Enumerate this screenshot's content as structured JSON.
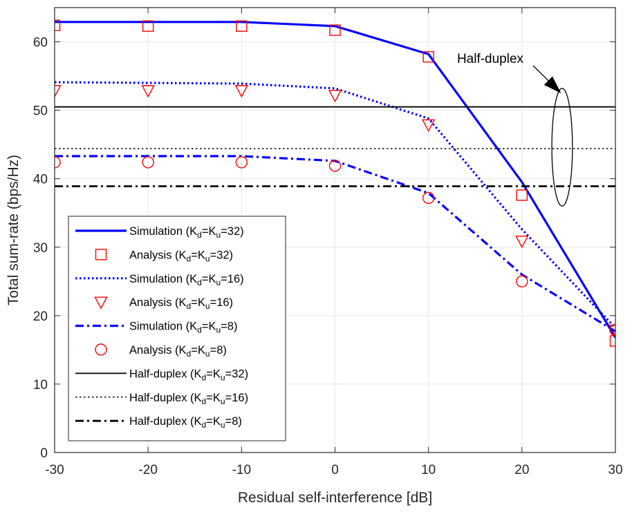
{
  "chart_data": {
    "type": "line",
    "title": "",
    "xlabel": "Residual self-interference [dB]",
    "ylabel": "Total sum-rate (bps/Hz)",
    "xlim": [
      -30,
      30
    ],
    "ylim": [
      0,
      65
    ],
    "xticks": [
      -30,
      -20,
      -10,
      0,
      10,
      20,
      30
    ],
    "xtick_labels": [
      "-30",
      "-20",
      "-10",
      "0",
      "10",
      "20",
      "30"
    ],
    "yticks": [
      0,
      10,
      20,
      30,
      40,
      50,
      60
    ],
    "ytick_labels": [
      "0",
      "10",
      "20",
      "30",
      "40",
      "50",
      "60"
    ],
    "grid": true,
    "legend_position": "bottom-left",
    "x": [
      -30,
      -20,
      -10,
      0,
      10,
      20,
      30
    ],
    "series": [
      {
        "name": "Simulation (Kd=Ku=32)",
        "legend_text": "Simulation (K",
        "k_d": "d",
        "mid": "=K",
        "k_u": "u",
        "tail": "=32)",
        "kind": "line",
        "dash": "solid",
        "width": 3.2,
        "color": "#0000ff",
        "values": [
          62.9,
          62.9,
          62.9,
          62.3,
          58.2,
          39.5,
          16.8
        ]
      },
      {
        "name": "Analysis (Kd=Ku=32)",
        "legend_text": "Analysis (K",
        "k_d": "d",
        "mid": "=K",
        "k_u": "u",
        "tail": "=32)",
        "kind": "marker",
        "marker": "square",
        "color": "#ff0000",
        "values": [
          62.4,
          62.3,
          62.3,
          61.7,
          57.8,
          37.6,
          16.3
        ]
      },
      {
        "name": "Simulation (Kd=Ku=16)",
        "legend_text": "Simulation (K",
        "k_d": "d",
        "mid": "=K",
        "k_u": "u",
        "tail": "=16)",
        "kind": "line",
        "dash": "dotted",
        "width": 3.2,
        "color": "#0000ff",
        "values": [
          54.1,
          54.0,
          53.9,
          53.2,
          48.8,
          32.6,
          18.2
        ]
      },
      {
        "name": "Analysis (Kd=Ku=16)",
        "legend_text": "Analysis (K",
        "k_d": "d",
        "mid": "=K",
        "k_u": "u",
        "tail": "=16)",
        "kind": "marker",
        "marker": "triangle-down",
        "color": "#ff0000",
        "values": [
          52.9,
          52.9,
          52.9,
          52.2,
          47.9,
          30.9,
          17.9
        ]
      },
      {
        "name": "Simulation (Kd=Ku=8)",
        "legend_text": "Simulation (K",
        "k_d": "d",
        "mid": "=K",
        "k_u": "u",
        "tail": "=8)",
        "kind": "line",
        "dash": "dashdot",
        "width": 3.2,
        "color": "#0000ff",
        "values": [
          43.3,
          43.3,
          43.3,
          42.6,
          37.9,
          26.0,
          17.7
        ]
      },
      {
        "name": "Analysis (Kd=Ku=8)",
        "legend_text": "Analysis (K",
        "k_d": "d",
        "mid": "=K",
        "k_u": "u",
        "tail": "=8)",
        "kind": "marker",
        "marker": "circle",
        "color": "#ff0000",
        "values": [
          42.4,
          42.4,
          42.4,
          41.9,
          37.2,
          25.0,
          17.9
        ]
      },
      {
        "name": "Half-duplex (Kd=Ku=32)",
        "legend_text": "Half-duplex (K",
        "k_d": "d",
        "mid": "=K",
        "k_u": "u",
        "tail": "=32)",
        "kind": "line",
        "dash": "solid",
        "width": 1.8,
        "color": "#000000",
        "values": [
          50.5,
          50.5,
          50.5,
          50.5,
          50.5,
          50.5,
          50.5
        ]
      },
      {
        "name": "Half-duplex (Kd=Ku=16)",
        "legend_text": "Half-duplex (K",
        "k_d": "d",
        "mid": "=K",
        "k_u": "u",
        "tail": "=16)",
        "kind": "line",
        "dash": "dotted",
        "width": 1.5,
        "color": "#000000",
        "values": [
          44.4,
          44.4,
          44.4,
          44.4,
          44.4,
          44.4,
          44.4
        ]
      },
      {
        "name": "Half-duplex (Kd=Ku=8)",
        "legend_text": "Half-duplex (K",
        "k_d": "d",
        "mid": "=K",
        "k_u": "u",
        "tail": "=8)",
        "kind": "line",
        "dash": "dashdot",
        "width": 2.8,
        "color": "#000000",
        "values": [
          38.9,
          38.9,
          38.9,
          38.9,
          38.9,
          38.9,
          38.9
        ]
      }
    ],
    "annotation": {
      "text": "Half-duplex",
      "arrow_to": [
        24.1,
        52.6
      ],
      "ellipse_center": [
        24.3,
        44.6
      ],
      "ellipse_radius": [
        1.1,
        8.6
      ]
    }
  }
}
